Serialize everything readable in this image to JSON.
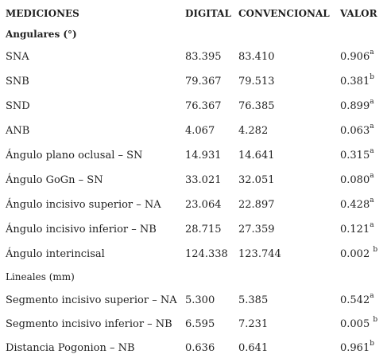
{
  "headers": {
    "mediciones": "MEDICIONES",
    "digital": "DIGITAL",
    "convencional": "CONVENCIONAL",
    "valor": "VALOR"
  },
  "groups": {
    "angulares": "Angulares (°)",
    "lineales": "Lineales (mm)"
  },
  "rows": [
    {
      "label": "SNA",
      "digital": "83.395",
      "convencional": "83.410",
      "valor": "0.906",
      "sig": "a"
    },
    {
      "label": "SNB",
      "digital": "79.367",
      "convencional": "79.513",
      "valor": "0.381",
      "sig": "b"
    },
    {
      "label": "SND",
      "digital": "76.367",
      "convencional": "76.385",
      "valor": "0.899",
      "sig": "a"
    },
    {
      "label": "ANB",
      "digital": "4.067",
      "convencional": "4.282",
      "valor": "0.063",
      "sig": "a"
    },
    {
      "label": "Ángulo plano oclusal – SN",
      "digital": "14.931",
      "convencional": "14.641",
      "valor": "0.315",
      "sig": "a"
    },
    {
      "label": "Ángulo GoGn – SN",
      "digital": "33.021",
      "convencional": "32.051",
      "valor": "0.080",
      "sig": "a"
    },
    {
      "label": "Ángulo incisivo superior – NA",
      "digital": "23.064",
      "convencional": "22.897",
      "valor": "0.428",
      "sig": "a"
    },
    {
      "label": "Ángulo incisivo inferior – NB",
      "digital": "28.715",
      "convencional": "27.359",
      "valor": "0.121",
      "sig": "a"
    },
    {
      "label": "Ángulo interincisal",
      "digital": "124.338",
      "convencional": "123.744",
      "valor": "0.002 ",
      "sig": "b"
    },
    {
      "label": "Segmento incisivo superior – NA",
      "digital": "5.300",
      "convencional": "5.385",
      "valor": "0.542",
      "sig": "a"
    },
    {
      "label": "Segmento incisivo inferior – NB",
      "digital": "6.595",
      "convencional": "7.231",
      "valor": "0.005 ",
      "sig": "b"
    },
    {
      "label": "Distancia Pogonion – NB",
      "digital": "0.636",
      "convencional": "0.641",
      "valor": "0.961",
      "sig": "b"
    }
  ]
}
